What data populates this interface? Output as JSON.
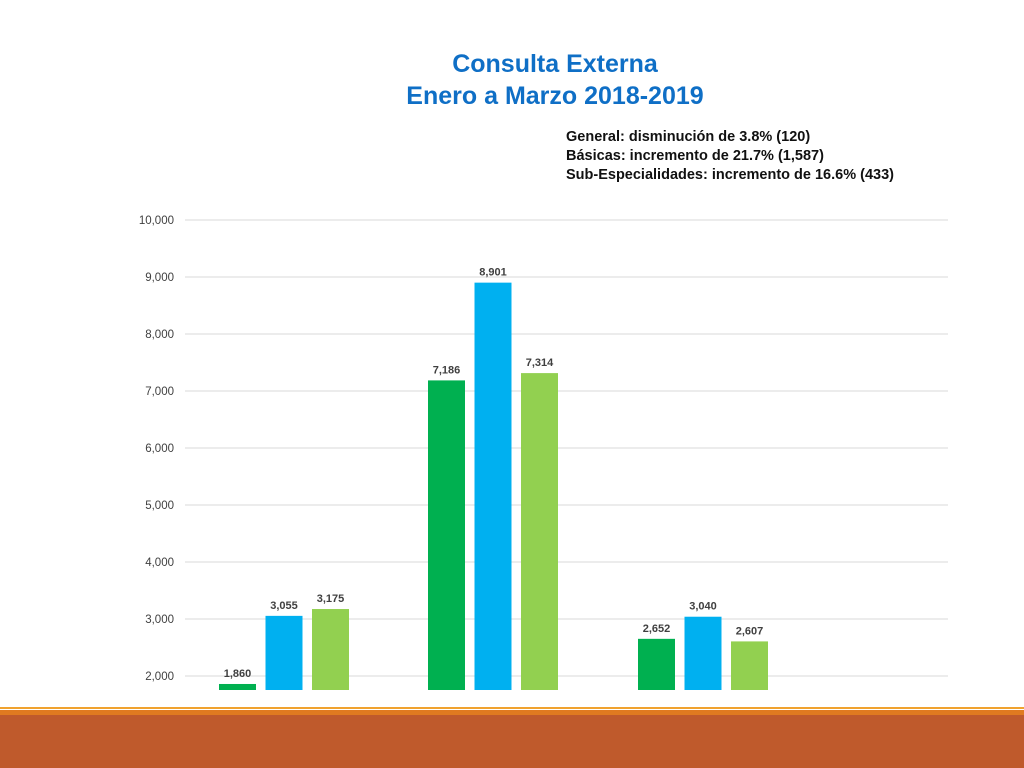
{
  "slide": {
    "title_line1": "Consulta Externa",
    "title_line2": "Enero a Marzo 2018-2019",
    "notes": [
      "General: disminución de 3.8% (120)",
      "Básicas: incremento de 21.7% (1,587)",
      "Sub-Especialidades: incremento de 16.6% (433)"
    ]
  },
  "colors": {
    "title": "#0f6fc6",
    "series": [
      "#00b050",
      "#00b0f0",
      "#92d050"
    ],
    "gridline": "#d9d9d9",
    "axis_text": "#404040",
    "footer_band": "#bf5a2c",
    "footer_rule": "#e07a20"
  },
  "chart_data": {
    "type": "bar",
    "categories": [
      "",
      "",
      ""
    ],
    "series": [
      {
        "values": [
          1860,
          7186,
          2652
        ]
      },
      {
        "values": [
          3055,
          8901,
          3040
        ]
      },
      {
        "values": [
          3175,
          7314,
          2607
        ]
      }
    ],
    "data_labels": [
      [
        "1,860",
        "7,186",
        "2,652"
      ],
      [
        "3,055",
        "8,901",
        "3,040"
      ],
      [
        "3,175",
        "7,314",
        "2,607"
      ]
    ],
    "ylim": [
      2000,
      10000
    ],
    "yticks": [
      2000,
      3000,
      4000,
      5000,
      6000,
      7000,
      8000,
      9000,
      10000
    ],
    "ytick_labels": [
      "2,000",
      "3,000",
      "4,000",
      "5,000",
      "6,000",
      "7,000",
      "8,000",
      "9,000",
      "10,000"
    ],
    "grid": true,
    "legend": "none",
    "xlabel": "",
    "ylabel": ""
  }
}
